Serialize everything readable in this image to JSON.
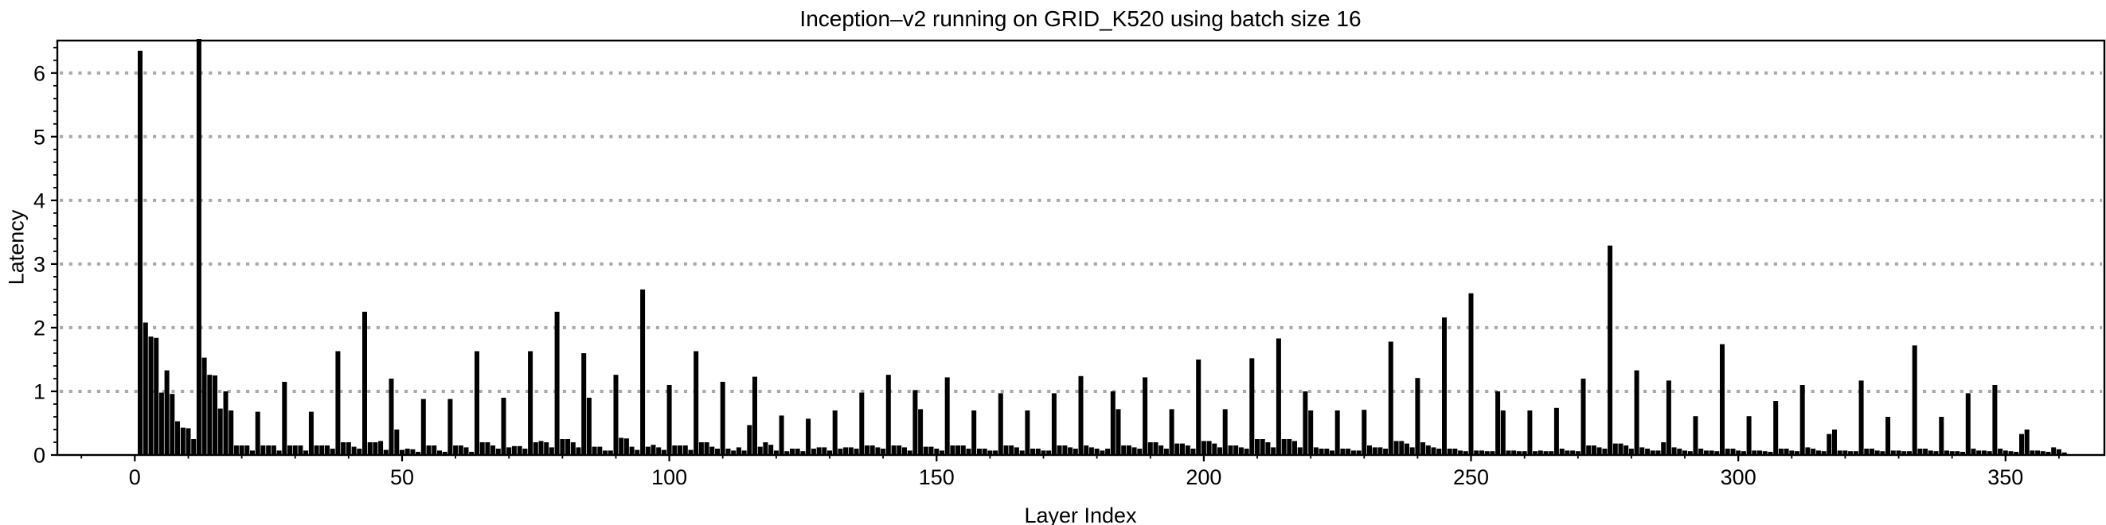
{
  "title": "Inception–v2 running on GRID_K520 using batch size 16",
  "chart_data": {
    "type": "bar",
    "title": "Inception–v2 running on GRID_K520 using batch size 16",
    "xlabel": "Layer Index",
    "ylabel": "Latency",
    "xlim": [
      -14.5,
      368.5
    ],
    "ylim": [
      0,
      6.51
    ],
    "x_major_ticks": [
      0,
      50,
      100,
      150,
      200,
      250,
      300,
      350
    ],
    "x_minor_tick_step": 10,
    "y_major_ticks": [
      0,
      1,
      2,
      3,
      4,
      5,
      6
    ],
    "y_minor_tick_step": 0.2,
    "grid": "horizontal-dotted",
    "legend": "none",
    "first_layer_index": 0,
    "values": [
      0,
      6.35,
      2.08,
      1.86,
      1.84,
      0.98,
      1.33,
      0.96,
      0.53,
      0.43,
      0.42,
      0.25,
      6.9,
      1.53,
      1.26,
      1.25,
      0.73,
      1.0,
      0.7,
      0.15,
      0.15,
      0.15,
      0.07,
      0.68,
      0.15,
      0.15,
      0.15,
      0.07,
      1.15,
      0.15,
      0.15,
      0.15,
      0.07,
      0.68,
      0.15,
      0.15,
      0.15,
      0.1,
      1.63,
      0.2,
      0.2,
      0.13,
      0.1,
      2.25,
      0.2,
      0.2,
      0.22,
      0.08,
      1.2,
      0.4,
      0.08,
      0.1,
      0.09,
      0.05,
      0.88,
      0.15,
      0.15,
      0.07,
      0.05,
      0.88,
      0.15,
      0.15,
      0.12,
      0.05,
      1.63,
      0.2,
      0.2,
      0.15,
      0.1,
      0.9,
      0.12,
      0.14,
      0.14,
      0.1,
      1.63,
      0.2,
      0.22,
      0.2,
      0.12,
      2.25,
      0.25,
      0.25,
      0.2,
      0.12,
      1.6,
      0.9,
      0.13,
      0.13,
      0.07,
      0.07,
      1.26,
      0.27,
      0.26,
      0.13,
      0.08,
      2.6,
      0.13,
      0.16,
      0.12,
      0.08,
      1.1,
      0.15,
      0.15,
      0.15,
      0.08,
      1.63,
      0.2,
      0.2,
      0.13,
      0.1,
      1.15,
      0.1,
      0.07,
      0.12,
      0.07,
      0.47,
      1.23,
      0.13,
      0.2,
      0.16,
      0.07,
      0.62,
      0.06,
      0.1,
      0.1,
      0.06,
      0.57,
      0.1,
      0.12,
      0.12,
      0.07,
      0.7,
      0.1,
      0.12,
      0.12,
      0.1,
      0.98,
      0.15,
      0.15,
      0.12,
      0.1,
      1.26,
      0.15,
      0.15,
      0.12,
      0.07,
      1.02,
      0.72,
      0.13,
      0.13,
      0.1,
      0.07,
      1.22,
      0.15,
      0.15,
      0.15,
      0.1,
      0.7,
      0.1,
      0.1,
      0.07,
      0.07,
      0.97,
      0.15,
      0.15,
      0.12,
      0.07,
      0.7,
      0.1,
      0.1,
      0.07,
      0.07,
      0.97,
      0.15,
      0.15,
      0.12,
      0.1,
      1.24,
      0.15,
      0.12,
      0.1,
      0.07,
      0.1,
      1.0,
      0.72,
      0.15,
      0.15,
      0.12,
      0.1,
      1.22,
      0.2,
      0.2,
      0.15,
      0.1,
      0.72,
      0.18,
      0.18,
      0.15,
      0.1,
      1.5,
      0.22,
      0.22,
      0.18,
      0.12,
      0.72,
      0.15,
      0.15,
      0.12,
      0.1,
      1.52,
      0.25,
      0.25,
      0.2,
      0.12,
      1.83,
      0.25,
      0.25,
      0.22,
      0.12,
      1.0,
      0.7,
      0.12,
      0.1,
      0.1,
      0.07,
      0.7,
      0.1,
      0.1,
      0.07,
      0.07,
      0.71,
      0.15,
      0.12,
      0.12,
      0.1,
      1.78,
      0.22,
      0.22,
      0.18,
      0.12,
      1.21,
      0.2,
      0.15,
      0.12,
      0.1,
      2.16,
      0.1,
      0.1,
      0.07,
      0.06,
      2.54,
      0.07,
      0.07,
      0.06,
      0.06,
      1.0,
      0.7,
      0.07,
      0.07,
      0.06,
      0.06,
      0.7,
      0.06,
      0.07,
      0.06,
      0.06,
      0.74,
      0.1,
      0.07,
      0.07,
      0.06,
      1.2,
      0.15,
      0.15,
      0.12,
      0.1,
      3.29,
      0.18,
      0.18,
      0.15,
      0.1,
      1.33,
      0.12,
      0.1,
      0.07,
      0.07,
      0.2,
      1.17,
      0.12,
      0.1,
      0.07,
      0.06,
      0.61,
      0.1,
      0.07,
      0.07,
      0.06,
      1.74,
      0.1,
      0.1,
      0.07,
      0.06,
      0.61,
      0.07,
      0.07,
      0.06,
      0.05,
      0.85,
      0.1,
      0.1,
      0.07,
      0.06,
      1.1,
      0.12,
      0.1,
      0.07,
      0.06,
      0.33,
      0.4,
      0.07,
      0.07,
      0.06,
      0.06,
      1.17,
      0.1,
      0.1,
      0.07,
      0.06,
      0.6,
      0.07,
      0.07,
      0.06,
      0.06,
      1.72,
      0.1,
      0.1,
      0.07,
      0.06,
      0.6,
      0.07,
      0.06,
      0.06,
      0.05,
      0.97,
      0.1,
      0.07,
      0.07,
      0.06,
      1.1,
      0.1,
      0.07,
      0.06,
      0.05,
      0.33,
      0.4,
      0.07,
      0.07,
      0.06,
      0.05,
      0.12,
      0.09,
      0.04
    ],
    "colors": {
      "bar": "#000000",
      "grid": "#aaaaaa",
      "frame": "#000000",
      "text": "#000000",
      "background": "#ffffff"
    }
  }
}
